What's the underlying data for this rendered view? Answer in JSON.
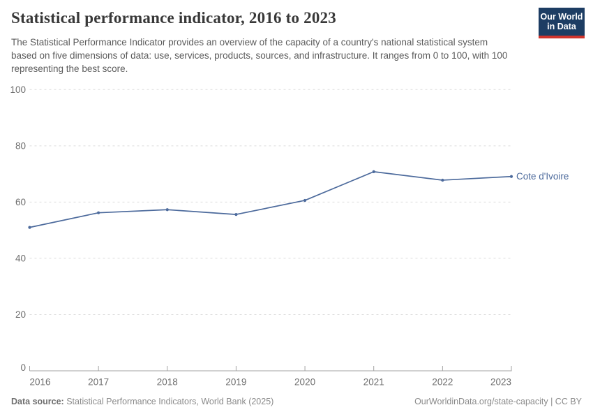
{
  "header": {
    "title": "Statistical performance indicator, 2016 to 2023",
    "subtitle": "The Statistical Performance Indicator provides an overview of the capacity of a country's national statistical system based on five dimensions of data: use, services, products, sources, and infrastructure. It ranges from 0 to 100, with 100 representing the best score.",
    "logo": {
      "line1": "Our World",
      "line2": "in Data",
      "bg_color": "#1d3d63",
      "stripe_color": "#d0342c"
    }
  },
  "chart_data": {
    "type": "line",
    "title": "Statistical performance indicator, 2016 to 2023",
    "x": [
      2016,
      2017,
      2018,
      2019,
      2020,
      2021,
      2022,
      2023
    ],
    "series": [
      {
        "name": "Cote d'Ivoire",
        "values": [
          51.0,
          56.2,
          57.3,
          55.6,
          60.6,
          70.8,
          67.8,
          69.1
        ],
        "color": "#4c6a9c"
      }
    ],
    "xlabel": "",
    "ylabel": "",
    "ylim": [
      0,
      100
    ],
    "yticks": [
      0,
      20,
      40,
      60,
      80,
      100
    ],
    "grid": "horizontal-dashed",
    "legend_position": "end-of-line-label",
    "marker": "dot"
  },
  "footer": {
    "datasource_label": "Data source:",
    "datasource_text": " Statistical Performance Indicators, World Bank (2025)",
    "credit": "OurWorldinData.org/state-capacity | CC BY"
  },
  "colors": {
    "line": "#4c6a9c",
    "gridline": "#dcdcdc",
    "axis": "#a3a3a3",
    "tick_label": "#6e6e6e",
    "title_text": "#383838",
    "subtitle_text": "#5b5b5b"
  }
}
